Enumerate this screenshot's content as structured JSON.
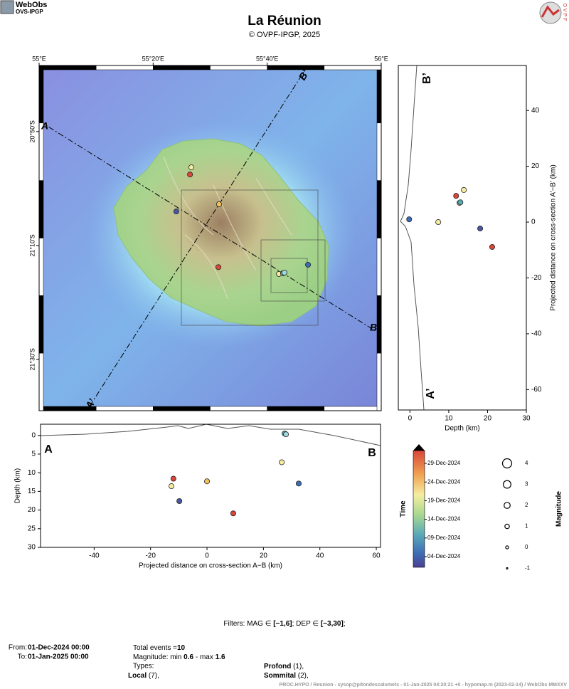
{
  "header": {
    "logo_title": "WebObs",
    "logo_subtitle": "OVS-IPGP",
    "title": "La Réunion",
    "subtitle": "© OVPF-IPGP, 2025",
    "right_logo": "OVPF"
  },
  "chart_data": [
    {
      "type": "map",
      "x": [
        55.445,
        55.441,
        55.401,
        55.526,
        55.524,
        55.786,
        55.701,
        55.713,
        55.717
      ],
      "values": [
        -20.938,
        -20.959,
        -21.067,
        -21.046,
        -21.23,
        -21.223,
        -21.25,
        -21.248,
        -21.246
      ],
      "colors": [
        "#f5eda0",
        "#d9463a",
        "#4b56a3",
        "#f2c35c",
        "#d9463a",
        "#3e6db5",
        "#f5eda0",
        "#5aa9b8",
        "#9fd9d9"
      ],
      "xlim": [
        55,
        56
      ],
      "ylim": [
        -21.65,
        -20.64
      ],
      "xticks": [
        {
          "value": 55,
          "label": "55°E"
        },
        {
          "value": 55.3333,
          "label": "55°20'E"
        },
        {
          "value": 55.6667,
          "label": "55°40'E"
        },
        {
          "value": 56,
          "label": "56°E"
        }
      ],
      "yticks": [
        {
          "value": -20.8333,
          "label": "20°50'S"
        },
        {
          "value": -21.1667,
          "label": "21°10'S"
        },
        {
          "value": -21.5,
          "label": "21°30'S"
        }
      ],
      "annotations": [
        "A",
        "B",
        "A’",
        "B’"
      ]
    },
    {
      "type": "scatter",
      "xlabel": "Projected distance on cross-section A−B (km)",
      "ylabel": "Depth (km)",
      "x": [
        -11.9,
        -12.6,
        0,
        -9.8,
        9.3,
        26.5,
        27.5,
        28.0,
        32.5
      ],
      "values": [
        11.6,
        13.6,
        12.3,
        17.6,
        20.9,
        7.2,
        -0.5,
        -0.3,
        12.9
      ],
      "colors": [
        "#d9463a",
        "#f5eda0",
        "#f2c35c",
        "#4b56a3",
        "#d9463a",
        "#f5eda0",
        "#5aa9b8",
        "#9fd9d9",
        "#3e6db5"
      ],
      "xlim": [
        -59,
        61.5
      ],
      "ylim": [
        -3,
        30
      ],
      "y_reversed": true,
      "xticks": [
        -40,
        -20,
        0,
        20,
        40,
        60
      ],
      "yticks": [
        0,
        5,
        10,
        15,
        20,
        25,
        30
      ],
      "annotations": [
        "A",
        "B"
      ]
    },
    {
      "type": "scatter",
      "xlabel": "Depth (km)",
      "ylabel": "Projected distance on cross-section A’−B’ (km)",
      "x": [
        11.9,
        13.9,
        12.8,
        13.0,
        -0.2,
        7.3,
        18.1,
        21.2
      ],
      "values": [
        9.4,
        11.5,
        6.9,
        7.1,
        1.0,
        0,
        -2.3,
        -8.9
      ],
      "colors": [
        "#d9463a",
        "#f5eda0",
        "#f2c35c",
        "#5aa9b8",
        "#3e6db5",
        "#f5eda0",
        "#4b56a3",
        "#d9463a"
      ],
      "xlim": [
        -3,
        30
      ],
      "ylim": [
        -67.3,
        56.1
      ],
      "xticks": [
        0,
        10,
        20,
        30
      ],
      "yticks": [
        -60,
        -40,
        -20,
        0,
        20,
        40
      ],
      "annotations": [
        "B’",
        "A’"
      ]
    }
  ],
  "time_legend": {
    "title": "Time",
    "ticks": [
      "29-Dec-2024",
      "24-Dec-2024",
      "19-Dec-2024",
      "14-Dec-2024",
      "09-Dec-2024",
      "04-Dec-2024"
    ]
  },
  "magnitude_legend": {
    "title": "Magnitude",
    "values": [
      4,
      3,
      2,
      1,
      0,
      -1
    ]
  },
  "filters": {
    "label": "Filters:  MAG ∈ ",
    "mag": "[−1,6]",
    "dep_label": "; DEP ∈ ",
    "dep": "[−3,30]",
    "end": ";"
  },
  "summary": {
    "from_label": "From:",
    "from": "01-Dec-2024 00:00",
    "to_label": "To:",
    "to": "01-Jan-2025 00:00",
    "total_label": "Total events =",
    "total": "10",
    "mag_label": "Magnitude: min ",
    "mag_min": "0.6",
    "mag_sep": " - max ",
    "mag_max": "1.6",
    "types_label": "Types:",
    "type1": "Local",
    "type1_count": " (7),",
    "type2": "Profond",
    "type2_count": " (1),",
    "type3": "Sommital",
    "type3_count": " (2),"
  },
  "footer": "PROC.HYPO / Reunion  - sysop@pitondescalumets - 01-Jan-2025 04:20:21 +0 - hypomap.m (2023-02-14) / WebObs MMXXV"
}
